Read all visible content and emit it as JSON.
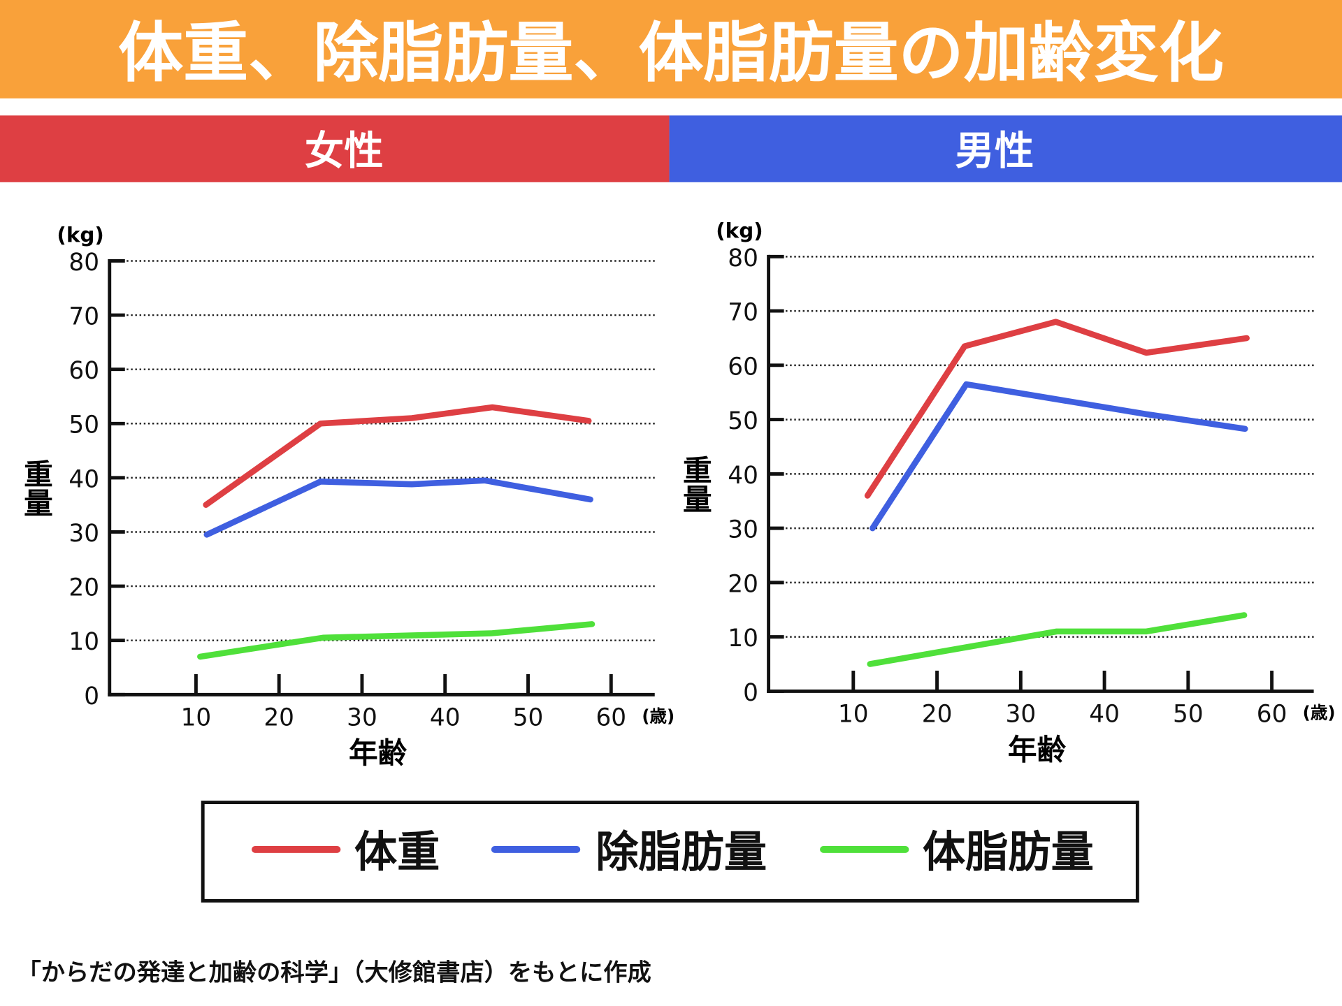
{
  "title": "体重、除脂肪量、体脂肪量の加齢変化",
  "colors": {
    "title_bg": "#F9A13A",
    "female_bg": "#DE3F43",
    "male_bg": "#3F5FE0",
    "weight": "#DE3F43",
    "lean": "#3F5FE0",
    "fat": "#4FE03A"
  },
  "legend": [
    "体重",
    "除脂肪量",
    "体脂肪量"
  ],
  "source": "「からだの発達と加齢の科学」（大修館書店）をもとに作成",
  "chart_data": [
    {
      "type": "line",
      "title": "女性",
      "xlabel": "年齢",
      "xunit": "(歳)",
      "ylabel": "重量",
      "yunit": "(kg)",
      "xticks": [
        10,
        20,
        30,
        40,
        50,
        60
      ],
      "yticks": [
        0,
        10,
        20,
        30,
        40,
        50,
        60,
        70,
        80
      ],
      "ylim": [
        0,
        80
      ],
      "grid": true,
      "series": [
        {
          "name": "体重",
          "x": [
            11.2,
            25,
            36,
            45.7,
            57.3
          ],
          "y": [
            35,
            50,
            51,
            53,
            50.5
          ]
        },
        {
          "name": "除脂肪量",
          "x": [
            11.3,
            25,
            36,
            44.8,
            57.5
          ],
          "y": [
            29.5,
            39.3,
            38.8,
            39.5,
            36
          ]
        },
        {
          "name": "体脂肪量",
          "x": [
            10.5,
            25.3,
            45.5,
            57.7
          ],
          "y": [
            7,
            10.5,
            11.3,
            13
          ]
        }
      ]
    },
    {
      "type": "line",
      "title": "男性",
      "xlabel": "年齢",
      "xunit": "(歳)",
      "ylabel": "重量",
      "yunit": "(kg)",
      "xticks": [
        10,
        20,
        30,
        40,
        50,
        60
      ],
      "yticks": [
        0,
        10,
        20,
        30,
        40,
        50,
        60,
        70,
        80
      ],
      "ylim": [
        0,
        80
      ],
      "grid": true,
      "series": [
        {
          "name": "体重",
          "x": [
            11.7,
            23.3,
            34.2,
            45,
            57
          ],
          "y": [
            36,
            63.5,
            68,
            62.3,
            65
          ]
        },
        {
          "name": "除脂肪量",
          "x": [
            12.3,
            23.5,
            45,
            56.8
          ],
          "y": [
            30,
            56.5,
            51,
            48.3
          ]
        },
        {
          "name": "体脂肪量",
          "x": [
            12,
            34.3,
            45,
            56.7
          ],
          "y": [
            5,
            11,
            11,
            14
          ]
        }
      ]
    }
  ]
}
